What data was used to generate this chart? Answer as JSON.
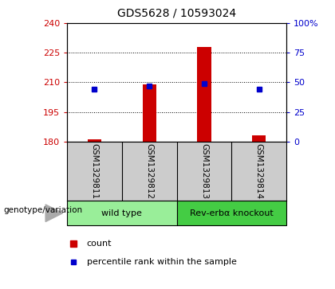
{
  "title": "GDS5628 / 10593024",
  "samples": [
    "GSM1329811",
    "GSM1329812",
    "GSM1329813",
    "GSM1329814"
  ],
  "count_values": [
    181,
    209,
    228,
    183
  ],
  "count_base": 180,
  "percentile_values": [
    44,
    47,
    49,
    44
  ],
  "left_ylim": [
    180,
    240
  ],
  "left_yticks": [
    180,
    195,
    210,
    225,
    240
  ],
  "right_ylim": [
    0,
    100
  ],
  "right_yticks": [
    0,
    25,
    50,
    75,
    100
  ],
  "right_yticklabels": [
    "0",
    "25",
    "50",
    "75",
    "100%"
  ],
  "bar_color": "#cc0000",
  "dot_color": "#0000cc",
  "groups": [
    {
      "label": "wild type",
      "indices": [
        0,
        1
      ],
      "color": "#99ee99"
    },
    {
      "label": "Rev-erbα knockout",
      "indices": [
        2,
        3
      ],
      "color": "#44cc44"
    }
  ],
  "genotype_label": "genotype/variation",
  "legend_count_label": "count",
  "legend_percentile_label": "percentile rank within the sample",
  "grid_color": "#000000",
  "title_fontsize": 10,
  "tick_label_fontsize": 8,
  "sample_bg_color": "#cccccc",
  "left_tick_color": "#cc0000",
  "right_tick_color": "#0000cc",
  "background_color": "#ffffff"
}
